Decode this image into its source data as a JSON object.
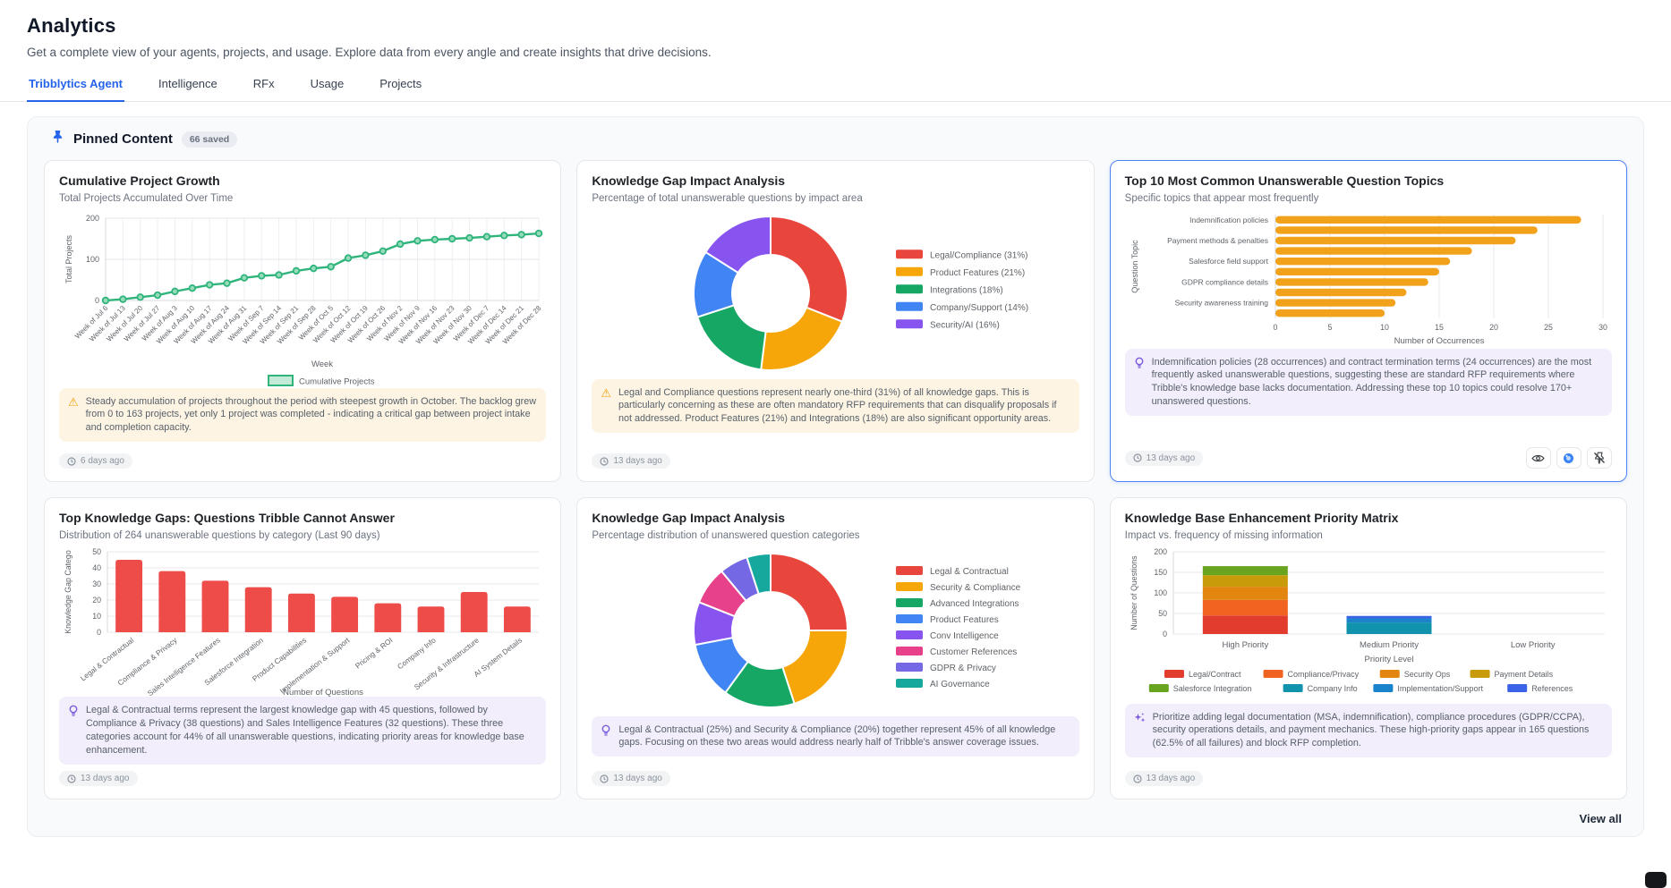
{
  "colors": {
    "accent_blue": "#2563eb",
    "warn_orange": "#f0a009",
    "insight_purple": "#7c5cdb",
    "warn_bg": "#fdf4e3",
    "purple_bg": "#f2eefb"
  },
  "page": {
    "title": "Analytics",
    "subtitle": "Get a complete view of your agents, projects, and usage. Explore data from every angle and create insights that drive decisions."
  },
  "tabs": [
    {
      "label": "Tribblytics Agent",
      "active": true
    },
    {
      "label": "Intelligence",
      "active": false
    },
    {
      "label": "RFx",
      "active": false
    },
    {
      "label": "Usage",
      "active": false
    },
    {
      "label": "Projects",
      "active": false
    }
  ],
  "pinned": {
    "title": "Pinned Content",
    "badge": "66 saved",
    "view_all": "View all"
  },
  "cards": [
    {
      "title": "Cumulative Project Growth",
      "subtitle": "Total Projects Accumulated Over Time",
      "insight_type": "warning",
      "insight": "Steady accumulation of projects throughout the period with steepest growth in October. The backlog grew from 0 to 163 projects, yet only 1 project was completed - indicating a critical gap between project intake and completion capacity.",
      "timestamp": "6 days ago"
    },
    {
      "title": "Knowledge Gap Impact Analysis",
      "subtitle": "Percentage of total unanswerable questions by impact area",
      "insight_type": "warning",
      "insight": "Legal and Compliance questions represent nearly one-third (31%) of all knowledge gaps. This is particularly concerning as these are often mandatory RFP requirements that can disqualify proposals if not addressed. Product Features (21%) and Integrations (18%) are also significant opportunity areas.",
      "timestamp": "13 days ago"
    },
    {
      "title": "Top 10 Most Common Unanswerable Question Topics",
      "subtitle": "Specific topics that appear most frequently",
      "insight_type": "bulb",
      "insight": "Indemnification policies (28 occurrences) and contract termination terms (24 occurrences) are the most frequently asked unanswerable questions, suggesting these are standard RFP requirements where Tribble's knowledge base lacks documentation. Addressing these top 10 topics could resolve 170+ unanswered questions.",
      "timestamp": "13 days ago"
    },
    {
      "title": "Top Knowledge Gaps: Questions Tribble Cannot Answer",
      "subtitle": "Distribution of 264 unanswerable questions by category (Last 90 days)",
      "insight_type": "bulb",
      "insight": "Legal & Contractual terms represent the largest knowledge gap with 45 questions, followed by Compliance & Privacy (38 questions) and Sales Intelligence Features (32 questions). These three categories account for 44% of all unanswerable questions, indicating priority areas for knowledge base enhancement.",
      "timestamp": "13 days ago"
    },
    {
      "title": "Knowledge Gap Impact Analysis",
      "subtitle": "Percentage distribution of unanswered question categories",
      "insight_type": "bulb",
      "insight": "Legal & Contractual (25%) and Security & Compliance (20%) together represent 45% of all knowledge gaps. Focusing on these two areas would address nearly half of Tribble's answer coverage issues.",
      "timestamp": "13 days ago"
    },
    {
      "title": "Knowledge Base Enhancement Priority Matrix",
      "subtitle": "Impact vs. frequency of missing information",
      "insight_type": "sparkles",
      "insight": "Prioritize adding legal documentation (MSA, indemnification), compliance procedures (GDPR/CCPA), security operations details, and payment mechanics. These high-priority gaps appear in 165 questions (62.5% of all failures) and block RFP completion.",
      "timestamp": "13 days ago"
    }
  ],
  "chart_data": [
    {
      "type": "line",
      "title": "Cumulative Project Growth",
      "xlabel": "Week",
      "ylabel": "Total Projects",
      "ylim": [
        0,
        200
      ],
      "yticks": [
        0,
        100,
        200
      ],
      "legend": "Cumulative Projects",
      "color": "#2fb47c",
      "marker_fill": "#96dcbb",
      "x": [
        "Week of Jul 6",
        "Week of Jul 13",
        "Week of Jul 20",
        "Week of Jul 27",
        "Week of Aug 3",
        "Week of Aug 10",
        "Week of Aug 17",
        "Week of Aug 24",
        "Week of Aug 31",
        "Week of Sep 7",
        "Week of Sep 14",
        "Week of Sep 21",
        "Week of Sep 28",
        "Week of Oct 5",
        "Week of Oct 12",
        "Week of Oct 19",
        "Week of Oct 26",
        "Week of Nov 2",
        "Week of Nov 9",
        "Week of Nov 16",
        "Week of Nov 23",
        "Week of Nov 30",
        "Week of Dec 7",
        "Week of Dec 14",
        "Week of Dec 21",
        "Week of Dec 28"
      ],
      "values": [
        0,
        3,
        8,
        13,
        22,
        30,
        38,
        42,
        55,
        60,
        62,
        72,
        78,
        82,
        103,
        110,
        120,
        137,
        145,
        148,
        150,
        152,
        155,
        158,
        160,
        163
      ]
    },
    {
      "type": "donut",
      "title": "Knowledge Gap Impact Analysis",
      "slices": [
        {
          "legend": "Legal/Compliance (31%)",
          "value": 31,
          "color": "#e8453c"
        },
        {
          "legend": "Product Features (21%)",
          "value": 21,
          "color": "#f6a609"
        },
        {
          "legend": "Integrations (18%)",
          "value": 18,
          "color": "#16a765"
        },
        {
          "legend": "Company/Support (14%)",
          "value": 14,
          "color": "#4184f3"
        },
        {
          "legend": "Security/AI (16%)",
          "value": 16,
          "color": "#8754f0"
        }
      ]
    },
    {
      "type": "hbar",
      "title": "Top 10 Most Common Unanswerable Question Topics",
      "xlabel": "Number of Occurrences",
      "ylabel": "Question Topic",
      "xlim": [
        0,
        30
      ],
      "xticks": [
        0,
        5,
        10,
        15,
        20,
        25,
        30
      ],
      "color": "#f2a11a",
      "categories": [
        "Indemnification policies",
        "",
        "Payment methods & penalties",
        "",
        "Salesforce field support",
        "",
        "GDPR compliance details",
        "",
        "Security awareness training",
        ""
      ],
      "values": [
        28,
        24,
        22,
        18,
        16,
        15,
        14,
        12,
        11,
        10
      ]
    },
    {
      "type": "bar",
      "title": "Top Knowledge Gaps: Questions Tribble Cannot Answer",
      "xlabel": "Number of Questions",
      "ylabel": "Knowledge Gap Catego",
      "ylim": [
        0,
        50
      ],
      "yticks": [
        0,
        10,
        20,
        30,
        40,
        50
      ],
      "color": "#ed4c49",
      "categories": [
        "Legal & Contractual",
        "Compliance & Privacy",
        "Sales Intelligence Features",
        "Salesforce Integration",
        "Product Capabilities",
        "Implementation & Support",
        "Pricing & ROI",
        "Company Info",
        "Security & Infrastructure",
        "AI System Details"
      ],
      "values": [
        45,
        38,
        32,
        28,
        24,
        22,
        18,
        16,
        25,
        16
      ]
    },
    {
      "type": "donut",
      "title": "Knowledge Gap Impact Analysis",
      "slices": [
        {
          "legend": "Legal & Contractual",
          "value": 25,
          "color": "#e8453c"
        },
        {
          "legend": "Security & Compliance",
          "value": 20,
          "color": "#f6a609"
        },
        {
          "legend": "Advanced Integrations",
          "value": 15,
          "color": "#16a765"
        },
        {
          "legend": "Product Features",
          "value": 12,
          "color": "#4184f3"
        },
        {
          "legend": "Conv Intelligence",
          "value": 9,
          "color": "#8754f0"
        },
        {
          "legend": "Customer References",
          "value": 8,
          "color": "#e8418c"
        },
        {
          "legend": "GDPR & Privacy",
          "value": 6,
          "color": "#7468e4"
        },
        {
          "legend": "AI Governance",
          "value": 5,
          "color": "#17a89d"
        }
      ]
    },
    {
      "type": "stacked_bar",
      "title": "Knowledge Base Enhancement Priority Matrix",
      "xlabel": "Priority Level",
      "ylabel": "Number of Questions",
      "ylim": [
        0,
        200
      ],
      "yticks": [
        0,
        50,
        100,
        150,
        200
      ],
      "categories": [
        "High Priority",
        "Medium Priority",
        "Low Priority"
      ],
      "series": [
        {
          "name": "Legal/Contract",
          "color": "#e23c2f",
          "values": [
            45,
            0,
            0
          ]
        },
        {
          "name": "Compliance/Privacy",
          "color": "#f06321",
          "values": [
            38,
            0,
            0
          ]
        },
        {
          "name": "Security Ops",
          "color": "#e2860f",
          "values": [
            32,
            0,
            0
          ]
        },
        {
          "name": "Payment Details",
          "color": "#c89b0b",
          "values": [
            28,
            0,
            0
          ]
        },
        {
          "name": "Salesforce Integration",
          "color": "#68a41f",
          "values": [
            22,
            0,
            0
          ]
        },
        {
          "name": "Company Info",
          "color": "#1193ad",
          "values": [
            0,
            28,
            0
          ]
        },
        {
          "name": "Implementation/Support",
          "color": "#1a83cb",
          "values": [
            0,
            10,
            0
          ]
        },
        {
          "name": "References",
          "color": "#3a63e8",
          "values": [
            0,
            6,
            0
          ]
        }
      ]
    }
  ]
}
